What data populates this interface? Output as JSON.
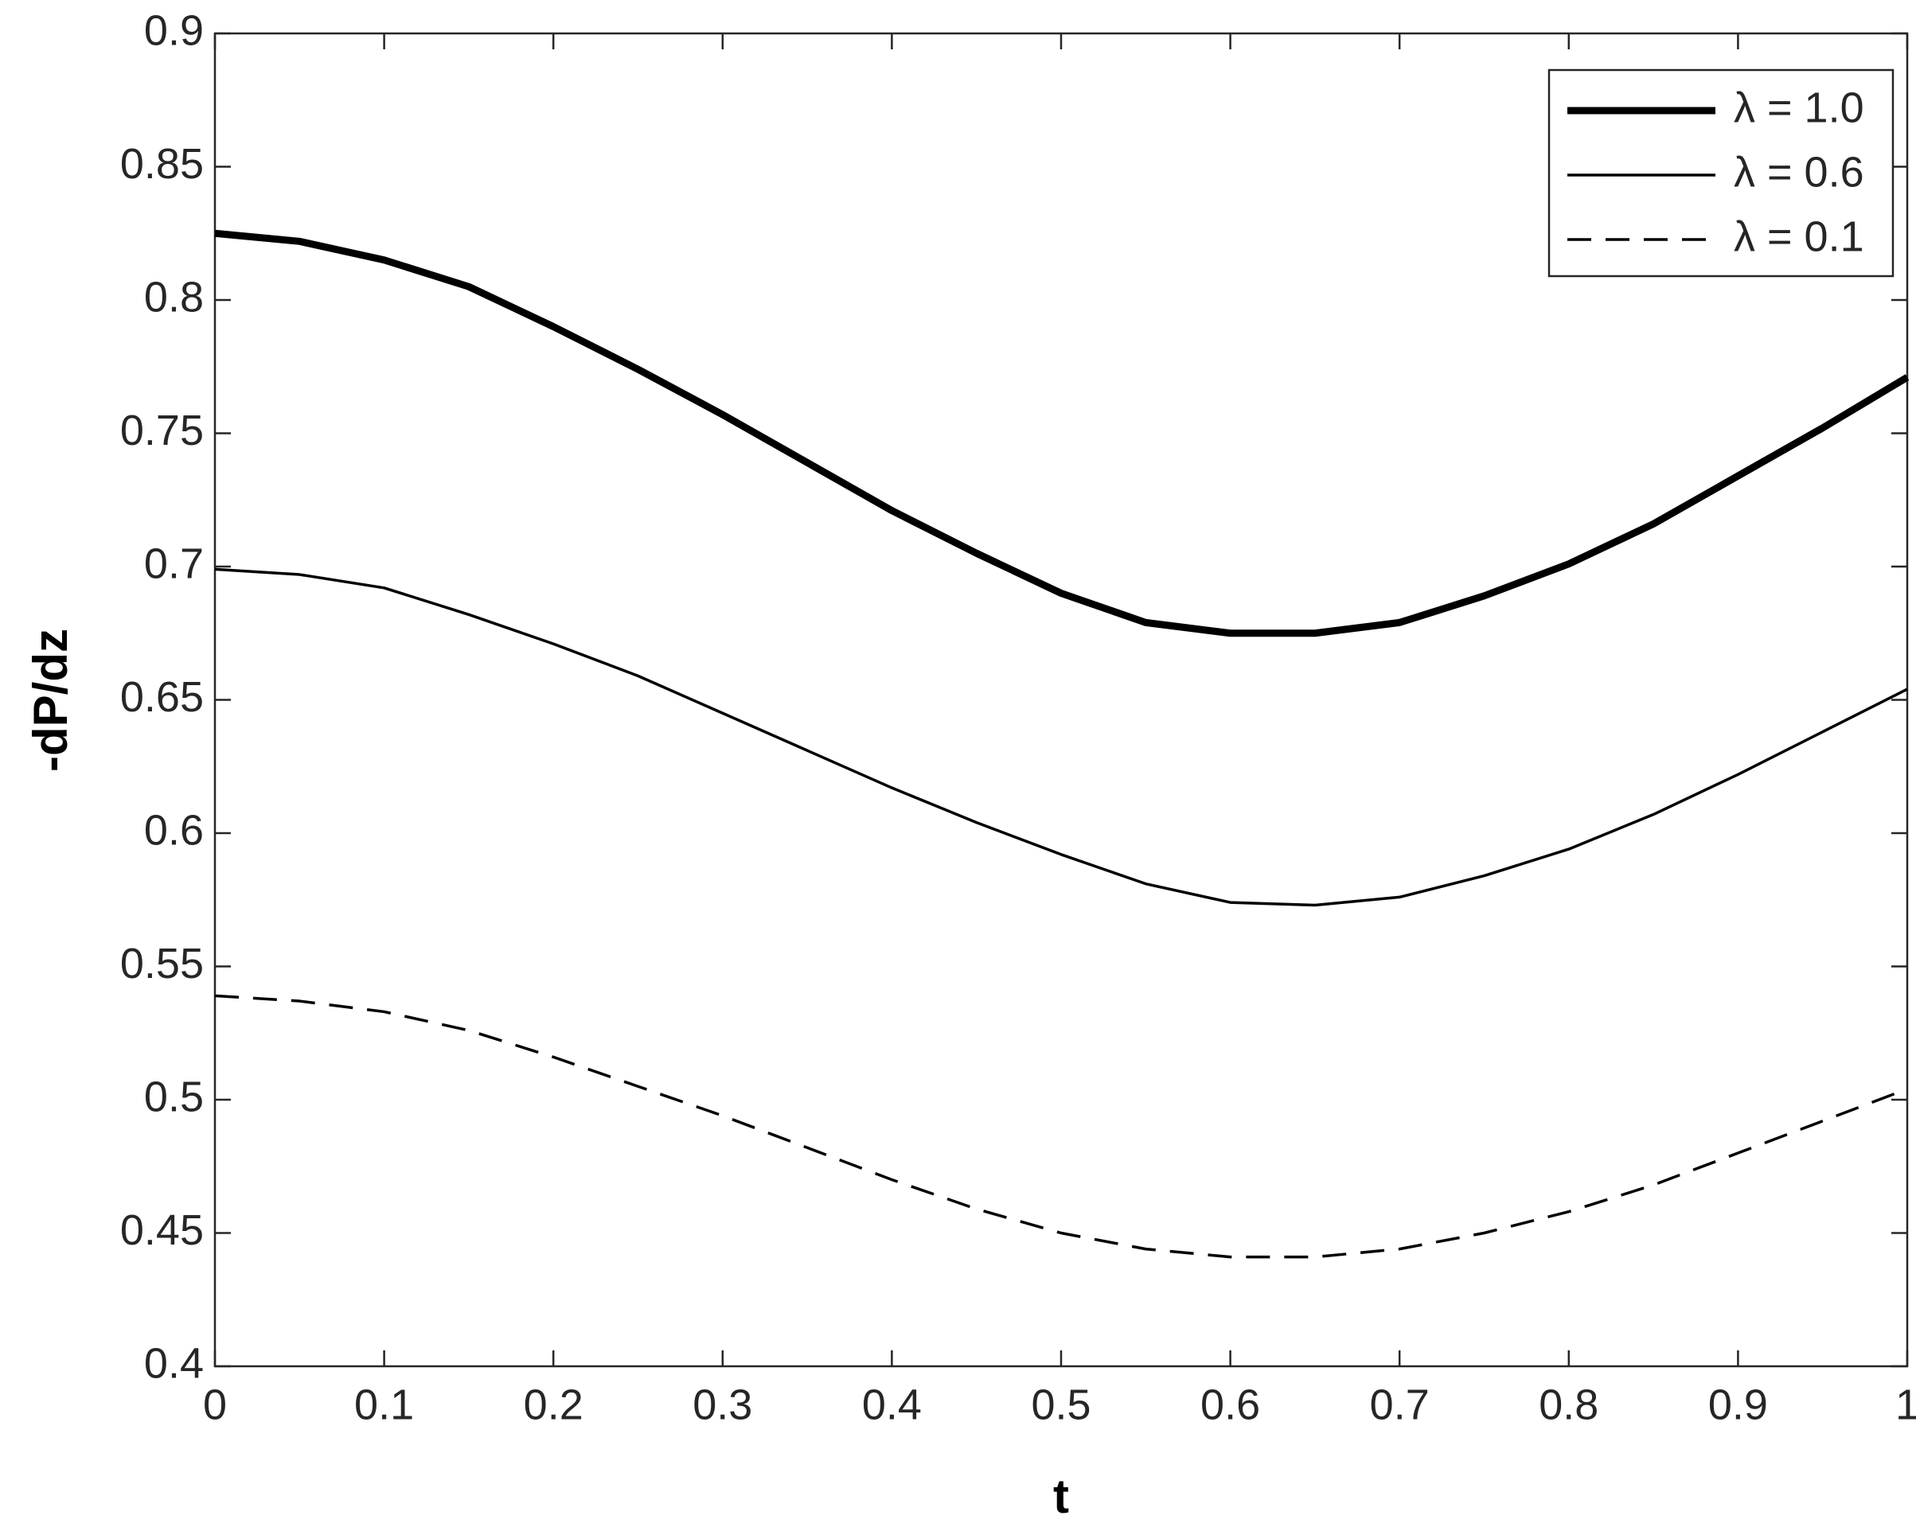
{
  "chart_data": {
    "type": "line",
    "xlabel": "t",
    "ylabel": "-dP/dz",
    "x": [
      0,
      0.05,
      0.1,
      0.15,
      0.2,
      0.25,
      0.3,
      0.35,
      0.4,
      0.45,
      0.5,
      0.55,
      0.6,
      0.65,
      0.7,
      0.75,
      0.8,
      0.85,
      0.9,
      0.95,
      1
    ],
    "series": [
      {
        "name": "λ = 1.0",
        "color": "#000000",
        "width": 9,
        "dash": false,
        "values": [
          0.825,
          0.822,
          0.815,
          0.805,
          0.79,
          0.774,
          0.757,
          0.739,
          0.721,
          0.705,
          0.69,
          0.679,
          0.675,
          0.675,
          0.679,
          0.689,
          0.701,
          0.716,
          0.734,
          0.752,
          0.771
        ]
      },
      {
        "name": "λ = 0.6",
        "color": "#000000",
        "width": 3.5,
        "dash": false,
        "values": [
          0.699,
          0.697,
          0.692,
          0.682,
          0.671,
          0.659,
          0.645,
          0.631,
          0.617,
          0.604,
          0.592,
          0.581,
          0.574,
          0.573,
          0.576,
          0.584,
          0.594,
          0.607,
          0.622,
          0.638,
          0.654
        ]
      },
      {
        "name": "λ = 0.1",
        "color": "#000000",
        "width": 3.5,
        "dash": true,
        "values": [
          0.539,
          0.537,
          0.533,
          0.526,
          0.516,
          0.505,
          0.494,
          0.482,
          0.47,
          0.459,
          0.45,
          0.444,
          0.441,
          0.441,
          0.444,
          0.45,
          0.458,
          0.468,
          0.48,
          0.492,
          0.504
        ]
      }
    ],
    "xlim": [
      0,
      1
    ],
    "xticks": [
      0,
      0.1,
      0.2,
      0.3,
      0.4,
      0.5,
      0.6,
      0.7,
      0.8,
      0.9,
      1
    ],
    "ylim": [
      0.4,
      0.9
    ],
    "yticks": [
      0.4,
      0.45,
      0.5,
      0.55,
      0.6,
      0.65,
      0.7,
      0.75,
      0.8,
      0.85,
      0.9
    ],
    "legend": "top-right",
    "grid": false
  }
}
